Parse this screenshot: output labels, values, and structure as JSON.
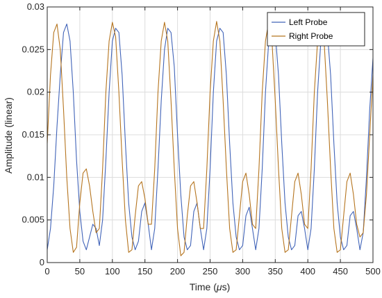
{
  "chart_data": {
    "type": "line",
    "title": "",
    "xlabel_prefix": "Time (",
    "xlabel_unit": "μ",
    "xlabel_suffix": "s)",
    "ylabel": "Amplitude (linear)",
    "xlim": [
      0,
      500
    ],
    "ylim": [
      0,
      0.03
    ],
    "x_ticks": [
      0,
      50,
      100,
      150,
      200,
      250,
      300,
      350,
      400,
      450,
      500
    ],
    "x_tick_labels": [
      "0",
      "50",
      "100",
      "150",
      "200",
      "250",
      "300",
      "350",
      "400",
      "450",
      "500"
    ],
    "y_ticks": [
      0,
      0.005,
      0.01,
      0.015,
      0.02,
      0.025,
      0.03
    ],
    "y_tick_labels": [
      "0",
      "0.005",
      "0.01",
      "0.015",
      "0.02",
      "0.025",
      "0.03"
    ],
    "grid": true,
    "legend_position": "top-right",
    "series": [
      {
        "name": "Left Probe",
        "color": "#4063b8",
        "x": [
          0,
          5,
          10,
          15,
          20,
          25,
          30,
          35,
          40,
          45,
          50,
          55,
          60,
          65,
          70,
          75,
          80,
          85,
          90,
          95,
          100,
          105,
          110,
          115,
          120,
          125,
          130,
          135,
          140,
          145,
          150,
          155,
          160,
          165,
          170,
          175,
          180,
          185,
          190,
          195,
          200,
          205,
          210,
          215,
          220,
          225,
          230,
          235,
          240,
          245,
          250,
          255,
          260,
          265,
          270,
          275,
          280,
          285,
          290,
          295,
          300,
          305,
          310,
          315,
          320,
          325,
          330,
          335,
          340,
          345,
          350,
          355,
          360,
          365,
          370,
          375,
          380,
          385,
          390,
          395,
          400,
          405,
          410,
          415,
          420,
          425,
          430,
          435,
          440,
          445,
          450,
          455,
          460,
          465,
          470,
          475,
          480,
          485,
          490,
          495,
          500
        ],
        "y": [
          0.0015,
          0.004,
          0.009,
          0.016,
          0.022,
          0.027,
          0.028,
          0.026,
          0.02,
          0.012,
          0.006,
          0.0025,
          0.0015,
          0.003,
          0.0045,
          0.004,
          0.002,
          0.005,
          0.012,
          0.02,
          0.026,
          0.0275,
          0.027,
          0.022,
          0.014,
          0.007,
          0.003,
          0.0015,
          0.0025,
          0.006,
          0.007,
          0.0045,
          0.0015,
          0.004,
          0.011,
          0.019,
          0.025,
          0.0275,
          0.027,
          0.023,
          0.015,
          0.008,
          0.003,
          0.0015,
          0.002,
          0.006,
          0.007,
          0.004,
          0.0015,
          0.004,
          0.011,
          0.02,
          0.026,
          0.0275,
          0.027,
          0.022,
          0.014,
          0.007,
          0.003,
          0.0015,
          0.002,
          0.0055,
          0.0065,
          0.004,
          0.0015,
          0.004,
          0.011,
          0.02,
          0.026,
          0.028,
          0.027,
          0.022,
          0.014,
          0.007,
          0.003,
          0.0015,
          0.002,
          0.0055,
          0.006,
          0.004,
          0.0015,
          0.004,
          0.011,
          0.02,
          0.026,
          0.028,
          0.027,
          0.022,
          0.014,
          0.007,
          0.003,
          0.0015,
          0.002,
          0.0055,
          0.006,
          0.004,
          0.0015,
          0.0035,
          0.01,
          0.018,
          0.024
        ]
      },
      {
        "name": "Right Probe",
        "color": "#b5741e",
        "x": [
          0,
          5,
          10,
          15,
          20,
          25,
          30,
          35,
          40,
          45,
          50,
          55,
          60,
          65,
          70,
          75,
          80,
          85,
          90,
          95,
          100,
          105,
          110,
          115,
          120,
          125,
          130,
          135,
          140,
          145,
          150,
          155,
          160,
          165,
          170,
          175,
          180,
          185,
          190,
          195,
          200,
          205,
          210,
          215,
          220,
          225,
          230,
          235,
          240,
          245,
          250,
          255,
          260,
          265,
          270,
          275,
          280,
          285,
          290,
          295,
          300,
          305,
          310,
          315,
          320,
          325,
          330,
          335,
          340,
          345,
          350,
          355,
          360,
          365,
          370,
          375,
          380,
          385,
          390,
          395,
          400,
          405,
          410,
          415,
          420,
          425,
          430,
          435,
          440,
          445,
          450,
          455,
          460,
          465,
          470,
          475,
          480,
          485,
          490,
          495,
          500
        ],
        "y": [
          0.014,
          0.022,
          0.027,
          0.028,
          0.025,
          0.018,
          0.01,
          0.004,
          0.0012,
          0.0018,
          0.007,
          0.0105,
          0.011,
          0.009,
          0.006,
          0.0035,
          0.004,
          0.011,
          0.02,
          0.026,
          0.0282,
          0.0265,
          0.02,
          0.012,
          0.005,
          0.0012,
          0.0015,
          0.0055,
          0.009,
          0.0095,
          0.0075,
          0.0045,
          0.0045,
          0.011,
          0.02,
          0.026,
          0.0282,
          0.026,
          0.019,
          0.011,
          0.004,
          0.0008,
          0.0012,
          0.0055,
          0.009,
          0.0095,
          0.007,
          0.004,
          0.004,
          0.011,
          0.02,
          0.026,
          0.0283,
          0.026,
          0.019,
          0.011,
          0.004,
          0.0012,
          0.0015,
          0.0055,
          0.0095,
          0.0105,
          0.008,
          0.0045,
          0.004,
          0.011,
          0.02,
          0.026,
          0.0283,
          0.026,
          0.019,
          0.011,
          0.004,
          0.0012,
          0.0015,
          0.0055,
          0.0095,
          0.0105,
          0.008,
          0.0045,
          0.004,
          0.011,
          0.02,
          0.026,
          0.0283,
          0.026,
          0.019,
          0.011,
          0.004,
          0.0012,
          0.0015,
          0.0055,
          0.0095,
          0.0105,
          0.008,
          0.0045,
          0.003,
          0.0035,
          0.008,
          0.015,
          0.022
        ]
      }
    ]
  }
}
